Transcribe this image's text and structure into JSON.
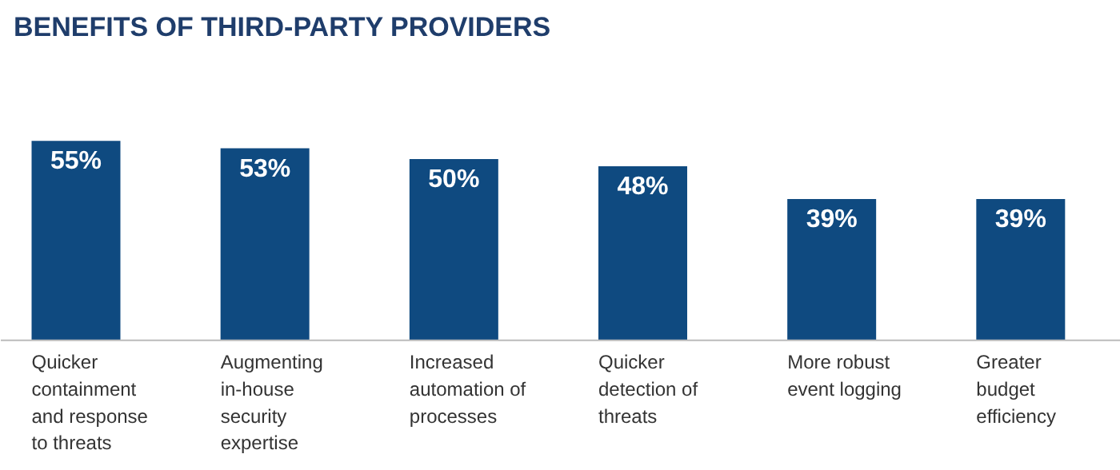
{
  "chart_data": {
    "type": "bar",
    "title": "BENEFITS OF THIRD-PARTY PROVIDERS",
    "categories": [
      "Quicker containment and response to threats",
      "Augmenting in-house security expertise",
      "Increased automation of processes",
      "Quicker detection of threats",
      "More robust event logging",
      "Greater budget efficiency"
    ],
    "values": [
      55,
      53,
      50,
      48,
      39,
      39
    ],
    "color": "#0f4a80",
    "value_labels": [
      "55%",
      "53%",
      "50%",
      "48%",
      "39%",
      "39%"
    ]
  }
}
